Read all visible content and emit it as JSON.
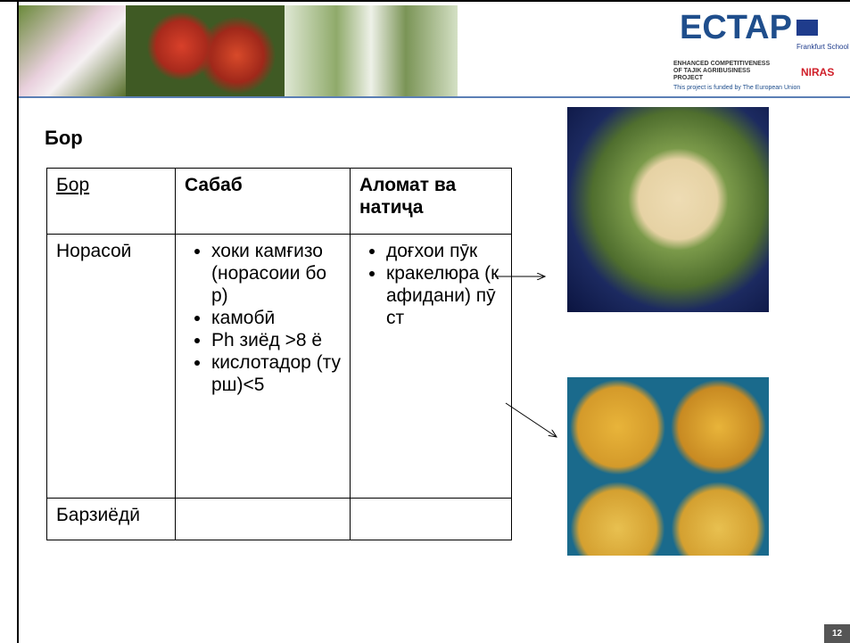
{
  "header": {
    "logo": "ECTAP",
    "subtitle": "ENHANCED COMPETITIVENESS OF TAJIK AGRIBUSINESS PROJECT",
    "funding": "This project is funded by The European Union",
    "partner1": "Frankfurt School",
    "partner2": "NIRAS"
  },
  "title": "Бор",
  "table": {
    "headers": [
      "Бор",
      "Сабаб",
      "Аломат ва натиҷа"
    ],
    "rows": [
      {
        "label": "Норасоӣ",
        "causes": [
          "хоки камғизо (норасоии бор)",
          "камобӣ",
          "Ph зиёд >8 ё",
          "кислотадор (турш)<5"
        ],
        "symptoms": [
          "доғхои пӯк",
          "кракелюра (кафидани) пӯст"
        ]
      },
      {
        "label": "Барзиёдӣ",
        "causes": [],
        "symptoms": []
      }
    ]
  },
  "page_number": "12"
}
